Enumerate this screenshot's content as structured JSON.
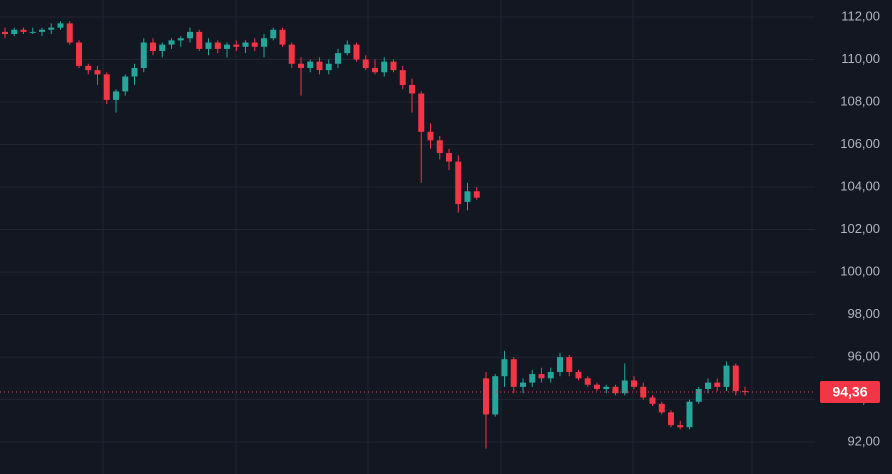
{
  "chart_data": {
    "type": "candlestick",
    "up_color": "#26a69a",
    "down_color": "#f23645",
    "grid": true,
    "ylim": [
      90.5,
      112.8
    ],
    "yticks": [
      {
        "value": 112,
        "label": "112,00"
      },
      {
        "value": 110,
        "label": "110,00"
      },
      {
        "value": 108,
        "label": "108,00"
      },
      {
        "value": 106,
        "label": "106,00"
      },
      {
        "value": 104,
        "label": "104,00"
      },
      {
        "value": 102,
        "label": "102,00"
      },
      {
        "value": 100,
        "label": "100,00"
      },
      {
        "value": 98,
        "label": "98,00"
      },
      {
        "value": 96,
        "label": "96,00"
      },
      {
        "value": 94,
        "label": "94,00"
      },
      {
        "value": 92,
        "label": "92,00"
      }
    ],
    "last_price": {
      "value": 94.36,
      "label": "94,36"
    },
    "open": [
      111.3,
      111.2,
      111.4,
      111.3,
      111.3,
      111.4,
      111.5,
      111.7,
      110.8,
      109.7,
      109.5,
      109.3,
      108.1,
      108.5,
      109.2,
      109.6,
      110.8,
      110.4,
      110.7,
      110.9,
      111.0,
      111.3,
      110.5,
      110.8,
      110.5,
      110.7,
      110.6,
      110.8,
      110.6,
      111.0,
      111.4,
      110.7,
      109.8,
      109.6,
      109.9,
      109.5,
      109.8,
      110.3,
      110.7,
      110.0,
      109.6,
      109.4,
      109.9,
      109.5,
      108.8,
      108.4,
      106.6,
      106.2,
      105.6,
      105.2,
      103.3,
      103.8,
      95.0,
      93.3,
      95.1,
      95.9,
      94.6,
      94.8,
      95.2,
      95.0,
      95.3,
      96.0,
      95.3,
      95.0,
      94.7,
      94.5,
      94.6,
      94.3,
      94.9,
      94.6,
      94.1,
      93.8,
      93.4,
      92.8,
      92.7,
      93.9,
      94.5,
      94.8,
      94.6,
      95.6,
      94.4
    ],
    "high": [
      111.5,
      111.5,
      111.5,
      111.5,
      111.5,
      111.7,
      111.8,
      111.8,
      110.9,
      109.8,
      109.7,
      109.4,
      108.6,
      109.3,
      109.8,
      111.0,
      111.0,
      110.8,
      111.0,
      111.1,
      111.5,
      111.4,
      111.0,
      110.9,
      110.8,
      110.9,
      110.9,
      111.0,
      111.2,
      111.5,
      111.5,
      110.8,
      110.1,
      110.0,
      110.1,
      110.0,
      110.5,
      110.9,
      110.8,
      110.2,
      110.0,
      110.1,
      110.0,
      109.7,
      109.1,
      108.5,
      107.0,
      106.4,
      105.8,
      105.5,
      104.2,
      104.0,
      95.3,
      95.2,
      96.3,
      96.0,
      95.0,
      95.4,
      95.5,
      95.5,
      96.2,
      96.1,
      95.4,
      95.1,
      94.8,
      94.7,
      94.7,
      95.7,
      95.1,
      94.8,
      94.2,
      93.9,
      93.5,
      93.0,
      94.0,
      94.6,
      95.0,
      95.0,
      95.8,
      95.7,
      94.6
    ],
    "low": [
      111.0,
      111.1,
      111.2,
      111.2,
      111.1,
      111.2,
      111.4,
      110.7,
      109.6,
      109.3,
      108.8,
      107.9,
      107.5,
      108.3,
      108.8,
      109.4,
      110.2,
      110.1,
      110.5,
      110.6,
      110.8,
      110.4,
      110.2,
      110.3,
      110.1,
      110.4,
      110.3,
      110.4,
      110.1,
      110.9,
      110.6,
      109.6,
      108.3,
      109.4,
      109.3,
      109.3,
      109.6,
      110.2,
      109.9,
      109.5,
      109.3,
      109.2,
      109.4,
      108.6,
      107.5,
      104.2,
      105.8,
      105.3,
      104.8,
      102.8,
      102.9,
      103.4,
      91.7,
      93.2,
      94.6,
      94.3,
      94.3,
      94.6,
      94.8,
      94.8,
      95.1,
      95.1,
      94.9,
      94.6,
      94.4,
      94.3,
      94.2,
      94.2,
      94.5,
      94.0,
      93.7,
      93.3,
      92.7,
      92.6,
      92.6,
      93.8,
      94.3,
      94.4,
      94.4,
      94.2,
      94.2
    ],
    "close": [
      111.2,
      111.4,
      111.3,
      111.3,
      111.4,
      111.5,
      111.7,
      110.8,
      109.7,
      109.5,
      109.3,
      108.1,
      108.5,
      109.2,
      109.6,
      110.8,
      110.4,
      110.7,
      110.9,
      111.0,
      111.3,
      110.5,
      110.8,
      110.5,
      110.7,
      110.6,
      110.8,
      110.6,
      111.0,
      111.4,
      110.7,
      109.8,
      109.6,
      109.9,
      109.5,
      109.8,
      110.3,
      110.7,
      110.0,
      109.6,
      109.4,
      109.9,
      109.5,
      108.8,
      108.4,
      106.6,
      106.2,
      105.6,
      105.2,
      103.2,
      103.8,
      103.5,
      93.3,
      95.1,
      95.9,
      94.6,
      94.8,
      95.2,
      95.0,
      95.3,
      96.0,
      95.3,
      95.0,
      94.7,
      94.5,
      94.6,
      94.3,
      94.9,
      94.6,
      94.1,
      93.8,
      93.4,
      92.8,
      92.7,
      93.9,
      94.5,
      94.8,
      94.6,
      95.6,
      94.4,
      94.36
    ]
  }
}
